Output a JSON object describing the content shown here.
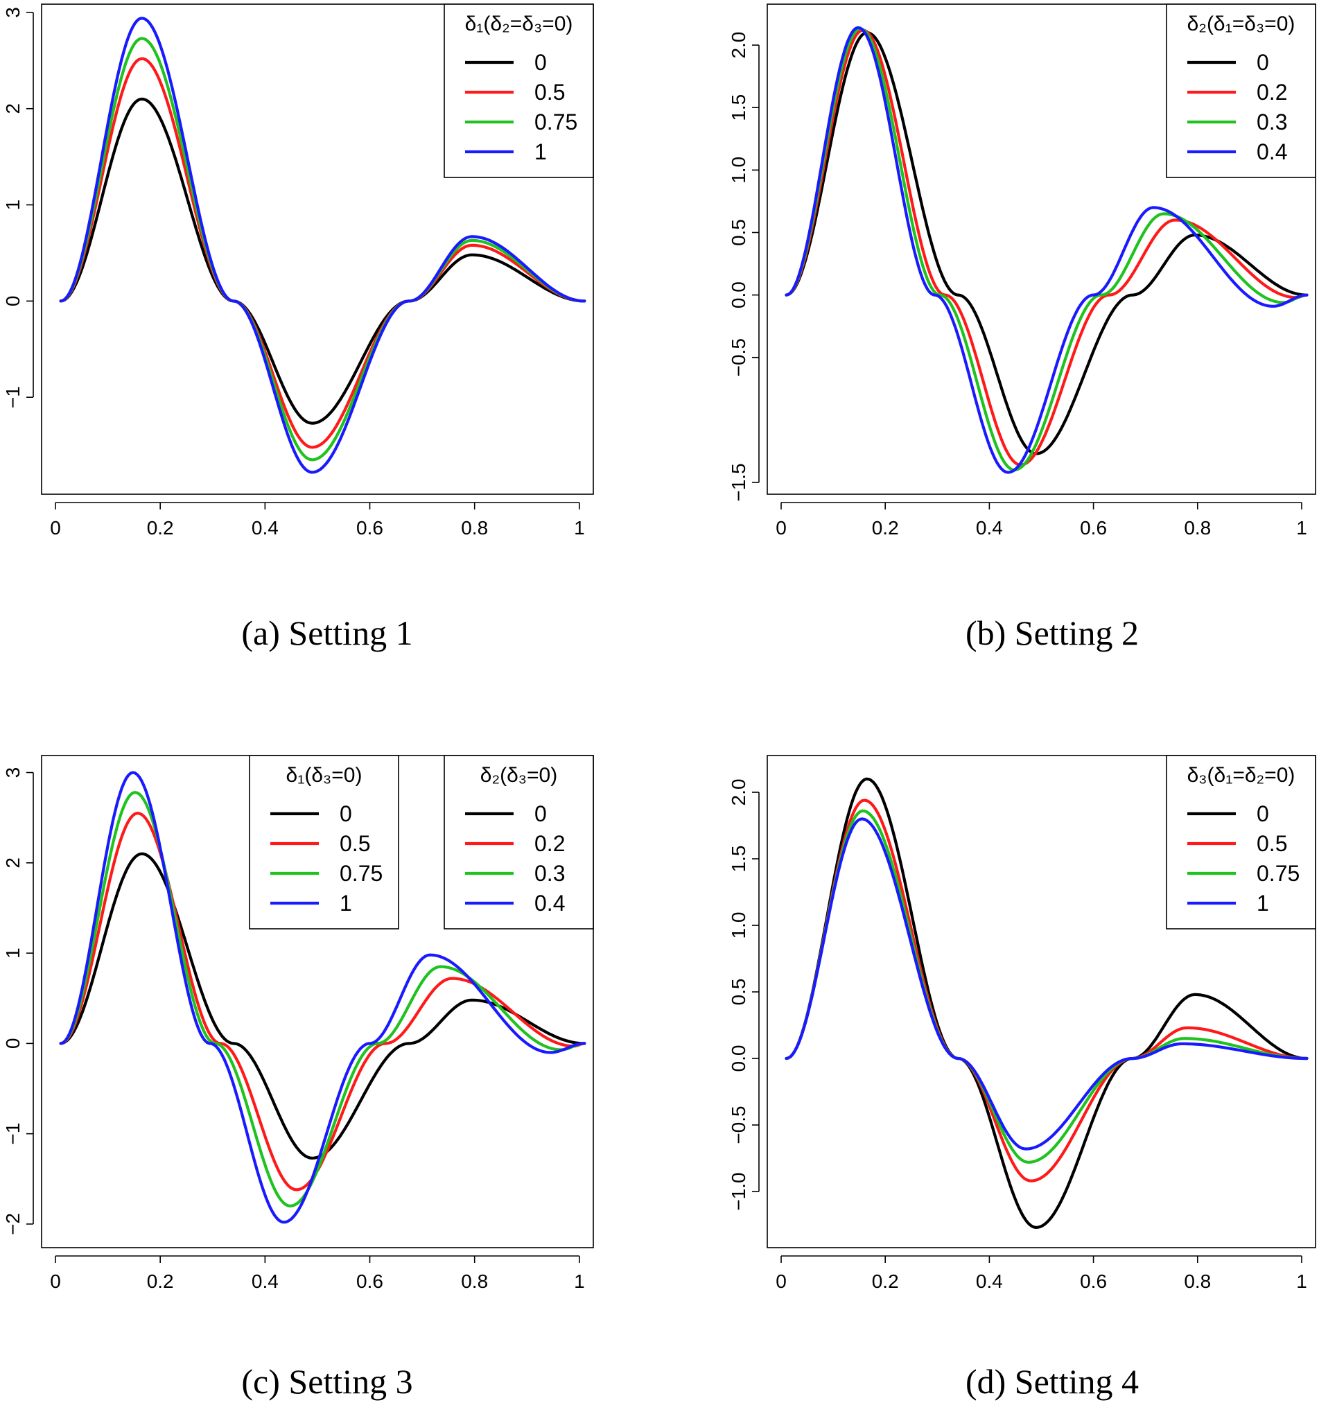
{
  "colors": {
    "black": "#000000",
    "red": "#ff1a1a",
    "green": "#1fc21f",
    "blue": "#1a1aff"
  },
  "chart_data": [
    {
      "type": "line",
      "caption": "(a) Setting 1",
      "xlim": [
        0,
        1.02
      ],
      "ylim": [
        -1.95,
        3.05
      ],
      "x_ticks": [
        {
          "value": 0,
          "label": "0"
        },
        {
          "value": 0.2,
          "label": "0.2"
        },
        {
          "value": 0.4,
          "label": "0.4"
        },
        {
          "value": 0.6,
          "label": "0.6"
        },
        {
          "value": 0.8,
          "label": "0.8"
        },
        {
          "value": 1,
          "label": "1"
        }
      ],
      "y_ticks": [
        {
          "value": -1,
          "label": "−1"
        },
        {
          "value": 0,
          "label": "0"
        },
        {
          "value": 1,
          "label": "1"
        },
        {
          "value": 2,
          "label": "2"
        },
        {
          "value": 3,
          "label": "3"
        }
      ],
      "legends": [
        {
          "title": "δ₁(δ₂=δ₃=0)",
          "position": "top-right",
          "entries": [
            "0",
            "0.5",
            "0.75",
            "1"
          ]
        }
      ],
      "series": [
        {
          "name": "0",
          "color": "black",
          "x": [
            0.01,
            0.165,
            0.34,
            0.49,
            0.675,
            0.795,
            1.01
          ],
          "y": [
            0,
            2.1,
            0,
            -1.27,
            0,
            0.48,
            0
          ]
        },
        {
          "name": "0.5",
          "color": "red",
          "x": [
            0.01,
            0.165,
            0.34,
            0.49,
            0.675,
            0.795,
            1.01
          ],
          "y": [
            0,
            2.52,
            0,
            -1.52,
            0,
            0.58,
            0
          ]
        },
        {
          "name": "0.75",
          "color": "green",
          "x": [
            0.01,
            0.165,
            0.34,
            0.49,
            0.675,
            0.795,
            1.01
          ],
          "y": [
            0,
            2.73,
            0,
            -1.65,
            0,
            0.63,
            0
          ]
        },
        {
          "name": "1",
          "color": "blue",
          "x": [
            0.01,
            0.165,
            0.34,
            0.49,
            0.675,
            0.795,
            1.01
          ],
          "y": [
            0,
            2.94,
            0,
            -1.78,
            0,
            0.67,
            0
          ]
        }
      ]
    },
    {
      "type": "line",
      "caption": "(b) Setting 2",
      "xlim": [
        0,
        1.02
      ],
      "ylim": [
        -1.55,
        2.3
      ],
      "x_ticks": [
        {
          "value": 0,
          "label": "0"
        },
        {
          "value": 0.2,
          "label": "0.2"
        },
        {
          "value": 0.4,
          "label": "0.4"
        },
        {
          "value": 0.6,
          "label": "0.6"
        },
        {
          "value": 0.8,
          "label": "0.8"
        },
        {
          "value": 1,
          "label": "1"
        }
      ],
      "y_ticks": [
        {
          "value": -1.5,
          "label": "−1.5"
        },
        {
          "value": -0.5,
          "label": "−0.5"
        },
        {
          "value": 0,
          "label": "0.0"
        },
        {
          "value": 0.5,
          "label": "0.5"
        },
        {
          "value": 1,
          "label": "1.0"
        },
        {
          "value": 1.5,
          "label": "1.5"
        },
        {
          "value": 2,
          "label": "2.0"
        }
      ],
      "legends": [
        {
          "title": "δ₂(δ₁=δ₃=0)",
          "position": "top-right",
          "entries": [
            "0",
            "0.2",
            "0.3",
            "0.4"
          ]
        }
      ],
      "series": [
        {
          "name": "0",
          "color": "black",
          "x": [
            0.01,
            0.165,
            0.34,
            0.49,
            0.675,
            0.795,
            1.01
          ],
          "y": [
            0,
            2.1,
            0,
            -1.27,
            0,
            0.48,
            0
          ]
        },
        {
          "name": "0.2",
          "color": "red",
          "x": [
            0.01,
            0.157,
            0.315,
            0.46,
            0.63,
            0.757,
            0.99,
            1.01
          ],
          "y": [
            0,
            2.12,
            0,
            -1.36,
            0,
            0.6,
            -0.02,
            0
          ]
        },
        {
          "name": "0.3",
          "color": "green",
          "x": [
            0.01,
            0.152,
            0.305,
            0.448,
            0.615,
            0.735,
            0.965,
            1.01
          ],
          "y": [
            0,
            2.13,
            0,
            -1.4,
            0,
            0.65,
            -0.06,
            0
          ]
        },
        {
          "name": "0.4",
          "color": "blue",
          "x": [
            0.01,
            0.148,
            0.295,
            0.436,
            0.6,
            0.715,
            0.945,
            1.01
          ],
          "y": [
            0,
            2.14,
            0,
            -1.42,
            0,
            0.7,
            -0.09,
            0
          ]
        }
      ]
    },
    {
      "type": "line",
      "caption": "(c) Setting 3",
      "xlim": [
        0,
        1.02
      ],
      "ylim": [
        -2.2,
        3.15
      ],
      "x_ticks": [
        {
          "value": 0,
          "label": "0"
        },
        {
          "value": 0.2,
          "label": "0.2"
        },
        {
          "value": 0.4,
          "label": "0.4"
        },
        {
          "value": 0.6,
          "label": "0.6"
        },
        {
          "value": 0.8,
          "label": "0.8"
        },
        {
          "value": 1,
          "label": "1"
        }
      ],
      "y_ticks": [
        {
          "value": -2,
          "label": "−2"
        },
        {
          "value": -1,
          "label": "−1"
        },
        {
          "value": 0,
          "label": "0"
        },
        {
          "value": 1,
          "label": "1"
        },
        {
          "value": 2,
          "label": "2"
        },
        {
          "value": 3,
          "label": "3"
        }
      ],
      "legends": [
        {
          "title": "δ₁(δ₃=0)",
          "position": "top-center",
          "entries": [
            "0",
            "0.5",
            "0.75",
            "1"
          ]
        },
        {
          "title": "δ₂(δ₃=0)",
          "position": "top-right",
          "entries": [
            "0",
            "0.2",
            "0.3",
            "0.4"
          ]
        }
      ],
      "series": [
        {
          "name": "0",
          "color": "black",
          "x": [
            0.01,
            0.165,
            0.34,
            0.49,
            0.675,
            0.795,
            1.01
          ],
          "y": [
            0,
            2.1,
            0,
            -1.27,
            0,
            0.48,
            0
          ]
        },
        {
          "name": "0.5",
          "color": "red",
          "x": [
            0.01,
            0.157,
            0.315,
            0.46,
            0.63,
            0.757,
            0.99,
            1.01
          ],
          "y": [
            0,
            2.55,
            0,
            -1.62,
            0,
            0.72,
            -0.03,
            0
          ]
        },
        {
          "name": "0.75",
          "color": "green",
          "x": [
            0.01,
            0.152,
            0.305,
            0.448,
            0.615,
            0.735,
            0.965,
            1.01
          ],
          "y": [
            0,
            2.78,
            0,
            -1.8,
            0,
            0.85,
            -0.07,
            0
          ]
        },
        {
          "name": "1",
          "color": "blue",
          "x": [
            0.01,
            0.148,
            0.295,
            0.436,
            0.6,
            0.715,
            0.945,
            1.01
          ],
          "y": [
            0,
            3.0,
            0,
            -1.98,
            0,
            0.98,
            -0.1,
            0
          ]
        }
      ]
    },
    {
      "type": "line",
      "caption": "(d) Setting 4",
      "xlim": [
        0,
        1.02
      ],
      "ylim": [
        -1.38,
        2.25
      ],
      "x_ticks": [
        {
          "value": 0,
          "label": "0"
        },
        {
          "value": 0.2,
          "label": "0.2"
        },
        {
          "value": 0.4,
          "label": "0.4"
        },
        {
          "value": 0.6,
          "label": "0.6"
        },
        {
          "value": 0.8,
          "label": "0.8"
        },
        {
          "value": 1,
          "label": "1"
        }
      ],
      "y_ticks": [
        {
          "value": -1,
          "label": "−1.0"
        },
        {
          "value": -0.5,
          "label": "−0.5"
        },
        {
          "value": 0,
          "label": "0.0"
        },
        {
          "value": 0.5,
          "label": "0.5"
        },
        {
          "value": 1,
          "label": "1.0"
        },
        {
          "value": 1.5,
          "label": "1.5"
        },
        {
          "value": 2,
          "label": "2.0"
        }
      ],
      "legends": [
        {
          "title": "δ₃(δ₁=δ₂=0)",
          "position": "top-right",
          "entries": [
            "0",
            "0.5",
            "0.75",
            "1"
          ]
        }
      ],
      "series": [
        {
          "name": "0",
          "color": "black",
          "x": [
            0.01,
            0.165,
            0.34,
            0.49,
            0.675,
            0.795,
            1.01
          ],
          "y": [
            0,
            2.1,
            0,
            -1.27,
            0,
            0.48,
            0
          ]
        },
        {
          "name": "0.5",
          "color": "red",
          "x": [
            0.01,
            0.16,
            0.34,
            0.48,
            0.675,
            0.78,
            1.01
          ],
          "y": [
            0,
            1.94,
            0,
            -0.92,
            0,
            0.23,
            0
          ]
        },
        {
          "name": "0.75",
          "color": "green",
          "x": [
            0.01,
            0.157,
            0.34,
            0.475,
            0.675,
            0.775,
            1.01
          ],
          "y": [
            0,
            1.86,
            0,
            -0.78,
            0,
            0.15,
            0
          ]
        },
        {
          "name": "1",
          "color": "blue",
          "x": [
            0.01,
            0.155,
            0.34,
            0.47,
            0.675,
            0.77,
            1.01
          ],
          "y": [
            0,
            1.8,
            0,
            -0.68,
            0,
            0.11,
            0
          ]
        }
      ]
    }
  ]
}
